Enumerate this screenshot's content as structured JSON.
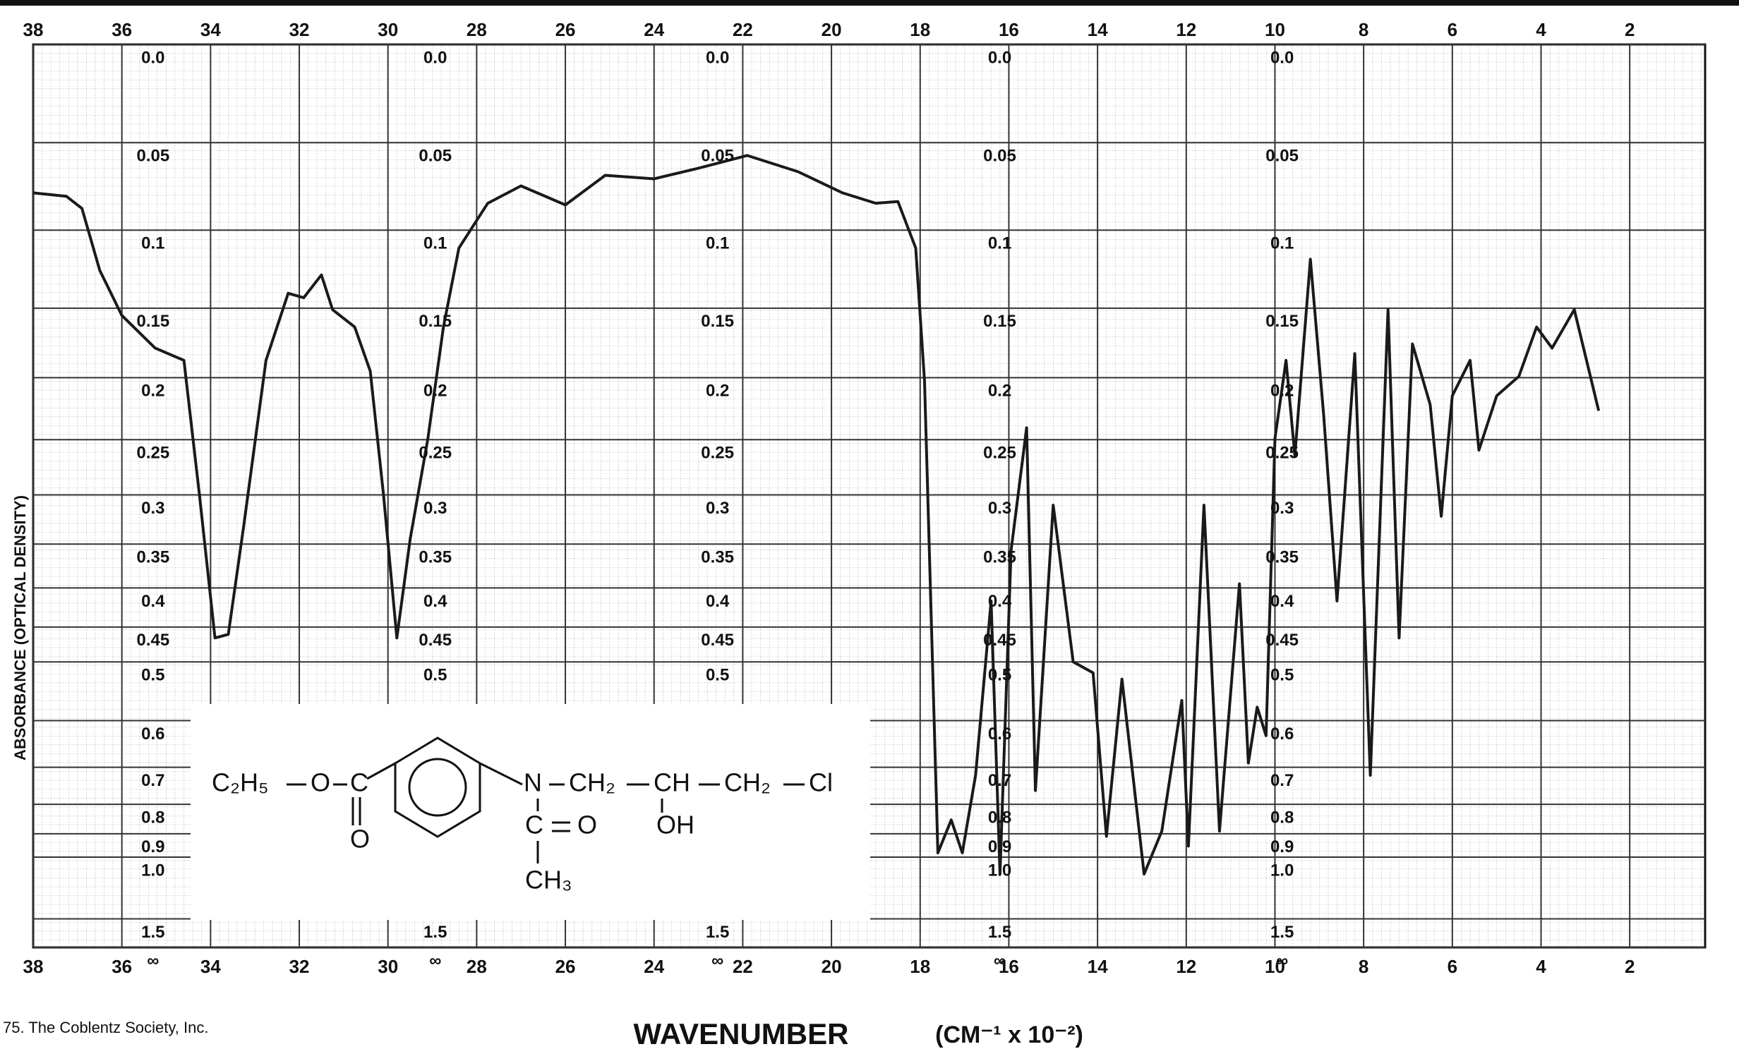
{
  "chart_data": {
    "type": "line",
    "x_label": "WAVENUMBER",
    "x_unit": "(CM⁻¹ x 10⁻²)",
    "y_label": "ABSORBANCE (OPTICAL DENSITY)",
    "credit": "75. The Coblentz Society, Inc.",
    "yscale": "transmittance",
    "grid": true,
    "color": "#1a1a1a",
    "xlim": [
      38,
      0.3
    ],
    "ylim": [
      null,
      0
    ],
    "xticks": [
      38,
      36,
      34,
      32,
      30,
      28,
      26,
      24,
      22,
      20,
      18,
      16,
      14,
      12,
      10,
      8,
      6,
      4,
      2
    ],
    "yticks": [
      {
        "value": 0,
        "label": "0.0"
      },
      0.05,
      0.1,
      0.15,
      0.2,
      0.25,
      0.3,
      0.35,
      0.4,
      0.45,
      0.5,
      0.6,
      0.7,
      0.8,
      0.9,
      {
        "value": 1,
        "label": "1.0"
      },
      1.5,
      {
        "value": null,
        "label": "∞"
      }
    ],
    "x": [
      38,
      37.25,
      36.9,
      36.5,
      36,
      35.25,
      34.6,
      34.25,
      33.9,
      33.6,
      33.25,
      32.75,
      32.25,
      31.9,
      31.5,
      31.25,
      30.75,
      30.4,
      30.1,
      29.8,
      29.5,
      29.1,
      28.75,
      28.4,
      27.75,
      27,
      26,
      25.1,
      24,
      23,
      21.9,
      20.75,
      19.75,
      19,
      18.5,
      18.1,
      17.9,
      17.6,
      17.3,
      17.05,
      16.75,
      16.4,
      16.2,
      15.95,
      15.6,
      15.4,
      15,
      14.55,
      14.1,
      13.8,
      13.45,
      12.95,
      12.55,
      12.1,
      11.95,
      11.6,
      11.25,
      10.8,
      10.6,
      10.4,
      10.2,
      10,
      9.75,
      9.55,
      9.2,
      8.9,
      8.6,
      8.2,
      7.85,
      7.45,
      7.2,
      6.9,
      6.5,
      6.25,
      6,
      5.6,
      5.4,
      5,
      4.5,
      4.1,
      3.75,
      3.25,
      2.7
    ],
    "values": [
      0.078,
      0.08,
      0.087,
      0.125,
      0.155,
      0.178,
      0.187,
      0.3,
      0.465,
      0.46,
      0.33,
      0.187,
      0.14,
      0.143,
      0.128,
      0.151,
      0.163,
      0.195,
      0.3,
      0.465,
      0.345,
      0.249,
      0.163,
      0.111,
      0.084,
      0.074,
      0.085,
      0.068,
      0.07,
      0.064,
      0.057,
      0.066,
      0.078,
      0.084,
      0.083,
      0.111,
      0.203,
      0.98,
      0.85,
      0.98,
      0.72,
      0.416,
      1.09,
      0.357,
      0.24,
      0.76,
      0.31,
      0.5,
      0.517,
      0.91,
      0.527,
      1.09,
      0.89,
      0.563,
      0.95,
      0.31,
      0.89,
      0.395,
      0.69,
      0.575,
      0.63,
      0.249,
      0.187,
      0.264,
      0.118,
      0.23,
      0.416,
      0.182,
      0.72,
      0.151,
      0.465,
      0.175,
      0.221,
      0.321,
      0.214,
      0.187,
      0.259,
      0.214,
      0.199,
      0.163,
      0.178,
      0.151,
      0.226
    ]
  },
  "structure": {
    "ethyl": "C₂H₅",
    "ester_o": "O",
    "carbonyl_c": "C",
    "carbonyl_o": "O",
    "n": "N",
    "ch2_a": "CH₂",
    "ch": "CH",
    "ch2_b": "CH₂",
    "cl": "Cl",
    "oh": "OH",
    "acetyl_c": "C",
    "acetyl_o": "O",
    "ch3": "CH₃"
  }
}
